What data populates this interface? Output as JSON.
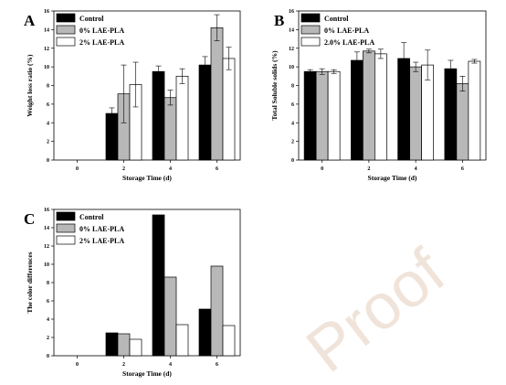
{
  "watermark": "Proof",
  "colors": {
    "control": "#000000",
    "zero": "#b8b8b8",
    "two": "#ffffff"
  },
  "chart_data": [
    {
      "type": "bar",
      "panel": "A",
      "categories": [
        "0",
        "2",
        "4",
        "6"
      ],
      "xlabel": "Storage Time (d)",
      "ylabel": "Weight loss ratio (%)",
      "ylim": [
        0,
        16
      ],
      "yticks": [
        0,
        2,
        4,
        6,
        8,
        10,
        12,
        14,
        16
      ],
      "legend_position": "top-left",
      "error_bars": true,
      "series": [
        {
          "name": "Control",
          "values": [
            0,
            5.0,
            9.5,
            10.2
          ],
          "errors": [
            0,
            0.6,
            0.6,
            0.9
          ]
        },
        {
          "name": "0% LAE-PLA",
          "values": [
            0,
            7.1,
            6.7,
            14.2
          ],
          "errors": [
            0,
            3.1,
            0.8,
            1.4
          ]
        },
        {
          "name": "2% LAE-PLA",
          "values": [
            0,
            8.1,
            9.0,
            10.9
          ],
          "errors": [
            0,
            2.4,
            0.8,
            1.2
          ]
        }
      ]
    },
    {
      "type": "bar",
      "panel": "B",
      "categories": [
        "0",
        "2",
        "4",
        "6"
      ],
      "xlabel": "Storage Time (d)",
      "ylabel": "Total Soluble solids (%)",
      "ylim": [
        0,
        16
      ],
      "yticks": [
        0,
        2,
        4,
        6,
        8,
        10,
        12,
        14,
        16
      ],
      "legend_position": "top-left",
      "error_bars": true,
      "series": [
        {
          "name": "Control",
          "values": [
            9.5,
            10.7,
            10.9,
            9.8
          ],
          "errors": [
            0.2,
            0.9,
            1.7,
            0.9
          ]
        },
        {
          "name": "0% LAE-PLA",
          "values": [
            9.5,
            11.7,
            10.0,
            8.2
          ],
          "errors": [
            0.3,
            0.2,
            0.5,
            0.8
          ]
        },
        {
          "name": "2.0% LAE-PLA",
          "values": [
            9.5,
            11.4,
            10.2,
            10.6
          ],
          "errors": [
            0.2,
            0.5,
            1.6,
            0.2
          ]
        }
      ]
    },
    {
      "type": "bar",
      "panel": "C",
      "categories": [
        "0",
        "2",
        "4",
        "6"
      ],
      "xlabel": "Storage Time (d)",
      "ylabel": "The color differences",
      "ylim": [
        0,
        16
      ],
      "yticks": [
        0,
        2,
        4,
        6,
        8,
        10,
        12,
        14,
        16
      ],
      "legend_position": "top-left",
      "error_bars": false,
      "series": [
        {
          "name": "Control",
          "values": [
            0,
            2.5,
            15.4,
            5.1
          ]
        },
        {
          "name": "0% LAE-PLA",
          "values": [
            0,
            2.4,
            8.6,
            9.8
          ]
        },
        {
          "name": "2% LAE-PLA",
          "values": [
            0,
            1.8,
            3.4,
            3.3
          ]
        }
      ]
    }
  ]
}
